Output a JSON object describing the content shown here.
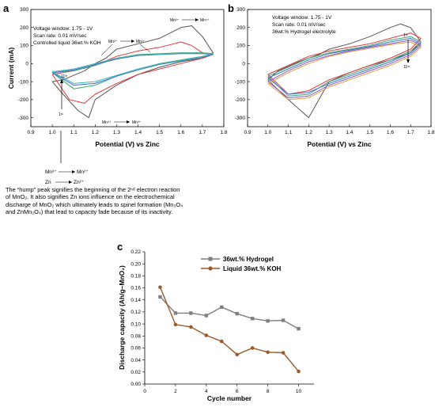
{
  "panels": [
    {
      "letter": "a",
      "info": [
        "Voltage window: 1.75 - 1V",
        "Scan rate: 0.01 mV/sec",
        "Controlled liquid 36wt.% KOH"
      ],
      "xlabel": "Potential (V) vs Zinc",
      "ylabel": "Current (mA)",
      "xticks": [
        "0.9",
        "1.0",
        "1.1",
        "1.2",
        "1.3",
        "1.4",
        "1.5",
        "1.6",
        "1.7",
        "1.8"
      ],
      "yticks": [
        "-300",
        "-200",
        "-100",
        "0",
        "100",
        "200",
        "300"
      ],
      "annotations": {
        "mn3_mn4": [
          "Mn³⁺",
          "Mn⁴⁺"
        ],
        "mn2_mn3": [
          "Mn²⁺",
          "Mn³⁺"
        ],
        "mn4_mn3": [
          "Mn⁴⁺",
          "Mn³⁺"
        ],
        "cycle_11": "11ᵗʰ",
        "cycle_1": "1ˢᵗ"
      }
    },
    {
      "letter": "b",
      "info": [
        "Voltage window: 1.75 - 1V",
        "Scan rate: 0.01 mV/sec",
        "36wt.% Hydrogel electrolyte"
      ],
      "xlabel": "Potential (V) vs Zinc",
      "ylabel": "",
      "xticks": [
        "0.9",
        "1.0",
        "1.1",
        "1.2",
        "1.3",
        "1.4",
        "1.5",
        "1.6",
        "1.7",
        "1.8"
      ],
      "yticks": [
        "-300",
        "-200",
        "-100",
        "0",
        "100",
        "200",
        "300"
      ],
      "annotations": {
        "cycle_1": "1ˢᵗ",
        "cycle_11": "11ᵗʰ"
      }
    },
    {
      "letter": "c",
      "xlabel": "Cycle number",
      "ylabel": "Discharge capacity (Ah/g–MnO₂)",
      "xticks": [
        "0",
        "2",
        "4",
        "6",
        "8",
        "10"
      ],
      "yticks": [
        "0.00",
        "0.02",
        "0.04",
        "0.06",
        "0.08",
        "0.10",
        "0.12",
        "0.14",
        "0.16",
        "0.18",
        "0.20",
        "0.22"
      ]
    }
  ],
  "reaction_labels": {
    "mn3_to_mn2": [
      "Mn³⁺",
      "Mn²⁺"
    ],
    "zn_to_zn2": [
      "Zn",
      "Zn²⁺"
    ]
  },
  "note_lines": [
    "The “hump” peak signifies the beginning of the 2ⁿᵈ electron reaction",
    "of MnO₂. It also signifies Zn ions influence on the electrochemical",
    "discharge of MnO₂ which ultimately leads to spinel formation (Mn₃O₄",
    "and ZnMn₂O₄) that lead to capacity fade because of its inactivity."
  ],
  "colors": {
    "hydrogel": "#7f7f7f",
    "koh": "#9c5a2a",
    "cv_first": "#555555",
    "cv_red": "#e5383b",
    "cv_green": "#3aa76d",
    "cv_blue": "#3a6fd8",
    "cv_teal": "#3fb5b0",
    "cv_purple": "#8a5cc8",
    "cv_orange": "#e69a3c"
  },
  "chart_data": [
    {
      "panel": "a",
      "type": "line",
      "x_label": "Potential (V) vs Zinc",
      "y_label": "Current (mA)",
      "xlim": [
        0.9,
        1.8
      ],
      "ylim": [
        -350,
        300
      ],
      "series": [
        {
          "color": "#555555",
          "x": [
            1.0,
            1.05,
            1.15,
            1.2,
            1.25,
            1.3,
            1.4,
            1.5,
            1.6,
            1.65,
            1.7,
            1.75,
            1.7,
            1.6,
            1.5,
            1.4,
            1.3,
            1.2,
            1.17,
            1.12,
            1.05,
            1.0
          ],
          "y": [
            -100,
            -90,
            -40,
            0,
            30,
            80,
            110,
            140,
            200,
            210,
            150,
            60,
            30,
            10,
            -20,
            -60,
            -120,
            -200,
            -300,
            -260,
            -170,
            -100
          ]
        },
        {
          "color": "#e5383b",
          "x": [
            1.0,
            1.1,
            1.2,
            1.3,
            1.4,
            1.5,
            1.6,
            1.65,
            1.7,
            1.75,
            1.7,
            1.6,
            1.5,
            1.4,
            1.3,
            1.2,
            1.15,
            1.08,
            1.0
          ],
          "y": [
            -60,
            -40,
            -10,
            40,
            70,
            90,
            120,
            100,
            60,
            50,
            30,
            0,
            -30,
            -60,
            -110,
            -170,
            -220,
            -200,
            -60
          ]
        },
        {
          "color": "#3aa76d",
          "x": [
            1.0,
            1.1,
            1.2,
            1.3,
            1.4,
            1.5,
            1.6,
            1.7,
            1.75,
            1.7,
            1.6,
            1.5,
            1.4,
            1.3,
            1.2,
            1.1,
            1.0
          ],
          "y": [
            -50,
            -40,
            -10,
            30,
            50,
            55,
            60,
            60,
            55,
            40,
            20,
            0,
            -30,
            -70,
            -120,
            -140,
            -50
          ]
        },
        {
          "color": "#3a6fd8",
          "x": [
            1.0,
            1.1,
            1.2,
            1.3,
            1.4,
            1.5,
            1.6,
            1.7,
            1.75,
            1.7,
            1.6,
            1.5,
            1.4,
            1.3,
            1.2,
            1.1,
            1.0
          ],
          "y": [
            -50,
            -35,
            -5,
            25,
            45,
            50,
            55,
            55,
            50,
            35,
            15,
            -5,
            -35,
            -70,
            -110,
            -120,
            -50
          ]
        },
        {
          "color": "#3fb5b0",
          "x": [
            1.0,
            1.1,
            1.2,
            1.3,
            1.4,
            1.5,
            1.6,
            1.7,
            1.75,
            1.7,
            1.6,
            1.5,
            1.4,
            1.3,
            1.2,
            1.1,
            1.0
          ],
          "y": [
            -45,
            -30,
            0,
            30,
            48,
            52,
            58,
            58,
            52,
            38,
            18,
            -2,
            -30,
            -65,
            -100,
            -110,
            -45
          ]
        }
      ]
    },
    {
      "panel": "b",
      "type": "line",
      "x_label": "Potential (V) vs Zinc",
      "xlim": [
        0.9,
        1.8
      ],
      "ylim": [
        -350,
        300
      ],
      "series": [
        {
          "color": "#555555",
          "x": [
            1.0,
            1.05,
            1.15,
            1.25,
            1.3,
            1.4,
            1.5,
            1.6,
            1.65,
            1.7,
            1.75,
            1.7,
            1.6,
            1.5,
            1.4,
            1.3,
            1.25,
            1.2,
            1.1,
            1.0
          ],
          "y": [
            -90,
            -40,
            10,
            50,
            80,
            110,
            150,
            200,
            220,
            200,
            120,
            60,
            20,
            -10,
            -50,
            -100,
            -200,
            -300,
            -200,
            -90
          ]
        },
        {
          "color": "#e5383b",
          "x": [
            1.0,
            1.1,
            1.2,
            1.3,
            1.4,
            1.5,
            1.6,
            1.7,
            1.75,
            1.7,
            1.6,
            1.5,
            1.4,
            1.3,
            1.2,
            1.1,
            1.0
          ],
          "y": [
            -60,
            -10,
            40,
            70,
            90,
            110,
            140,
            170,
            140,
            80,
            30,
            -10,
            -50,
            -90,
            -150,
            -170,
            -60
          ]
        },
        {
          "color": "#3aa76d",
          "x": [
            1.0,
            1.1,
            1.2,
            1.3,
            1.4,
            1.5,
            1.6,
            1.7,
            1.75,
            1.7,
            1.6,
            1.5,
            1.4,
            1.3,
            1.2,
            1.1,
            1.0
          ],
          "y": [
            -70,
            -20,
            30,
            60,
            80,
            100,
            130,
            150,
            120,
            70,
            20,
            -20,
            -60,
            -100,
            -170,
            -180,
            -70
          ]
        },
        {
          "color": "#3a6fd8",
          "x": [
            1.0,
            1.1,
            1.2,
            1.3,
            1.4,
            1.5,
            1.6,
            1.7,
            1.75,
            1.7,
            1.6,
            1.5,
            1.4,
            1.3,
            1.2,
            1.1,
            1.0
          ],
          "y": [
            -80,
            -30,
            20,
            55,
            75,
            95,
            120,
            140,
            110,
            60,
            10,
            -30,
            -70,
            -110,
            -160,
            -170,
            -80
          ]
        },
        {
          "color": "#8a5cc8",
          "x": [
            1.0,
            1.1,
            1.2,
            1.3,
            1.4,
            1.5,
            1.6,
            1.7,
            1.75,
            1.7,
            1.6,
            1.5,
            1.4,
            1.3,
            1.2,
            1.1,
            1.0
          ],
          "y": [
            -100,
            -40,
            10,
            45,
            70,
            90,
            110,
            130,
            100,
            50,
            0,
            -40,
            -80,
            -120,
            -180,
            -190,
            -100
          ]
        },
        {
          "color": "#e69a3c",
          "x": [
            1.0,
            1.1,
            1.2,
            1.3,
            1.4,
            1.5,
            1.6,
            1.7,
            1.75,
            1.7,
            1.6,
            1.5,
            1.4,
            1.3,
            1.2,
            1.1,
            1.0
          ],
          "y": [
            -110,
            -50,
            0,
            40,
            65,
            85,
            105,
            120,
            90,
            40,
            -10,
            -50,
            -90,
            -130,
            -190,
            -200,
            -110
          ]
        }
      ]
    },
    {
      "panel": "c",
      "type": "line",
      "x_label": "Cycle number",
      "y_label": "Discharge capacity (Ah/g–MnO₂)",
      "xlim": [
        0,
        11
      ],
      "ylim": [
        0,
        0.22
      ],
      "x": [
        1,
        2,
        3,
        4,
        5,
        6,
        7,
        8,
        9,
        10
      ],
      "series": [
        {
          "name": "36wt.% Hydrogel",
          "color": "#7f7f7f",
          "marker": "square",
          "values": [
            0.145,
            0.118,
            0.118,
            0.114,
            0.128,
            0.117,
            0.109,
            0.105,
            0.106,
            0.092
          ]
        },
        {
          "name": "Liquid 36wt.% KOH",
          "color": "#9c5a2a",
          "marker": "circle",
          "values": [
            0.161,
            0.099,
            0.095,
            0.081,
            0.071,
            0.049,
            0.06,
            0.053,
            0.052,
            0.021
          ]
        }
      ]
    }
  ]
}
